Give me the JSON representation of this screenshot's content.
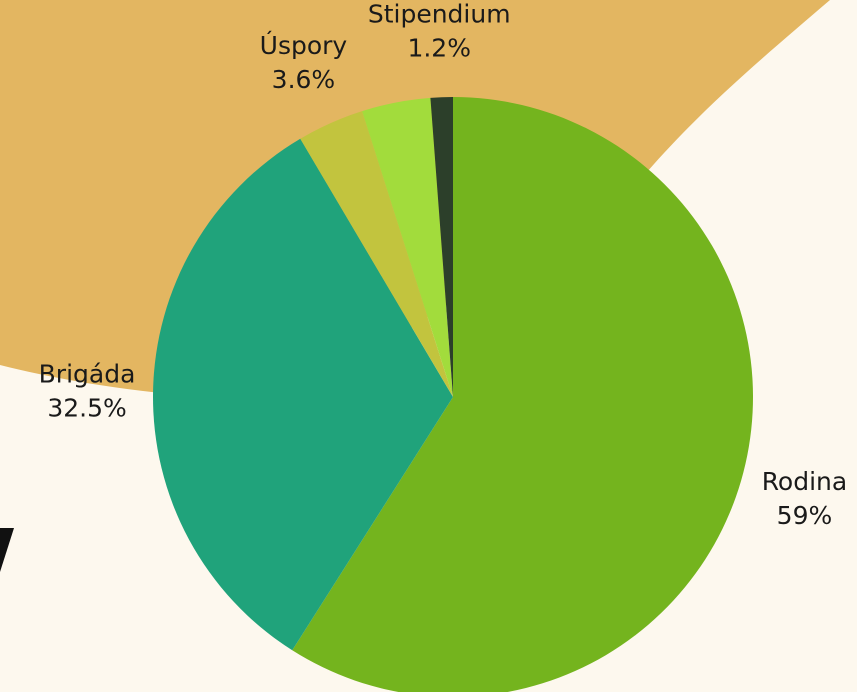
{
  "chart_data": {
    "type": "pie",
    "categories": [
      "Rodina",
      "Brigáda",
      "Úspory",
      null,
      "Stipendium"
    ],
    "values": [
      59,
      32.5,
      3.6,
      3.7,
      1.2
    ],
    "value_labels": [
      "59%",
      "32.5%",
      "3.6%",
      null,
      "1.2%"
    ],
    "colors": [
      "#74b41e",
      "#20a37b",
      "#c2c43e",
      "#a2dc3c",
      "#2c3f2a"
    ]
  }
}
